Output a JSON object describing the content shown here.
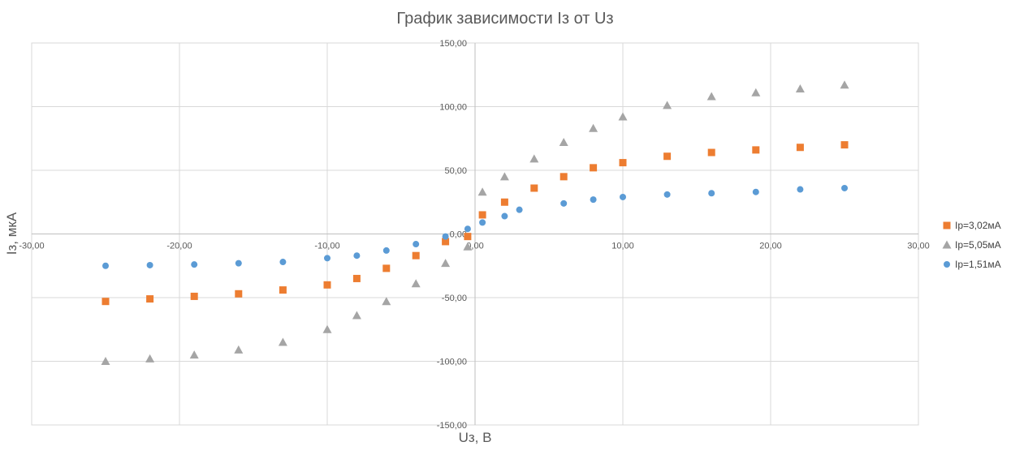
{
  "chart_data": {
    "type": "scatter",
    "title": "График зависимости Iз от Uз",
    "xlabel": "Uз, В",
    "ylabel": "Iз, мкА",
    "xlim": [
      -30,
      30
    ],
    "ylim": [
      -150,
      150
    ],
    "x_ticks": [
      -30,
      -20,
      -10,
      0,
      10,
      20,
      30
    ],
    "y_ticks": [
      -150,
      -100,
      -50,
      0,
      50,
      100,
      150
    ],
    "x_tick_labels": [
      "-30,00",
      "-20,00",
      "-10,00",
      "0,00",
      "10,00",
      "20,00",
      "30,00"
    ],
    "y_tick_labels": [
      "-150,00",
      "-100,00",
      "-50,00",
      "0,00",
      "50,00",
      "100,00",
      "150,00"
    ],
    "grid": true,
    "legend_position": "right",
    "series": [
      {
        "name": "Iр=3,02мА",
        "color": "#ED7D31",
        "marker": "square",
        "x": [
          -25,
          -22,
          -19,
          -16,
          -13,
          -10,
          -8,
          -6,
          -4,
          -2,
          -0.5,
          0.5,
          2,
          4,
          6,
          8,
          10,
          13,
          16,
          19,
          22,
          25
        ],
        "y": [
          -53,
          -51,
          -49,
          -47,
          -44,
          -40,
          -35,
          -27,
          -17,
          -6,
          -2,
          15,
          25,
          36,
          45,
          52,
          56,
          61,
          64,
          66,
          68,
          70
        ]
      },
      {
        "name": "Iр=5,05мА",
        "color": "#A5A5A5",
        "marker": "triangle",
        "x": [
          -25,
          -22,
          -19,
          -16,
          -13,
          -10,
          -8,
          -6,
          -4,
          -2,
          -0.5,
          0.5,
          2,
          4,
          6,
          8,
          10,
          13,
          16,
          19,
          22,
          25
        ],
        "y": [
          -100,
          -98,
          -95,
          -91,
          -85,
          -75,
          -64,
          -53,
          -39,
          -23,
          -10,
          33,
          45,
          59,
          72,
          83,
          92,
          101,
          108,
          111,
          114,
          117
        ]
      },
      {
        "name": "Iр=1,51мА",
        "color": "#5B9BD5",
        "marker": "circle",
        "x": [
          -25,
          -22,
          -19,
          -16,
          -13,
          -10,
          -8,
          -6,
          -4,
          -2,
          -0.5,
          0.5,
          2,
          3,
          6,
          8,
          10,
          13,
          16,
          19,
          22,
          25
        ],
        "y": [
          -25,
          -24.5,
          -24,
          -23,
          -22,
          -19,
          -17,
          -13,
          -8,
          -2,
          4,
          9,
          14,
          19,
          24,
          27,
          29,
          31,
          32,
          33,
          35,
          36
        ]
      }
    ]
  }
}
